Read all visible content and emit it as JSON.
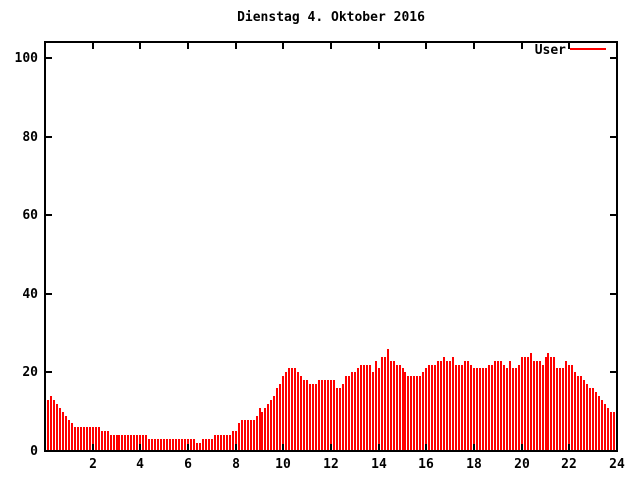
{
  "title": "Dienstag 4. Oktober 2016",
  "legend": {
    "label": "User",
    "color": "#ff0000",
    "position": "top-right"
  },
  "colors": {
    "background": "#ffffff",
    "foreground": "#000000",
    "bar": "#ff0000"
  },
  "chart_data": {
    "type": "bar",
    "title": "Dienstag 4. Oktober 2016",
    "xlabel": "",
    "ylabel": "",
    "xlim": [
      0,
      24
    ],
    "ylim": [
      0,
      104
    ],
    "xticks": [
      2,
      4,
      6,
      8,
      10,
      12,
      14,
      16,
      18,
      20,
      22,
      24
    ],
    "yticks": [
      0,
      20,
      40,
      60,
      80,
      100
    ],
    "grid": false,
    "legend_position": "top-right",
    "x_start_hours": 0.125,
    "x_step_hours": 0.125,
    "series": [
      {
        "name": "User",
        "color": "#ff0000",
        "values": [
          13,
          14,
          13,
          12,
          11,
          10,
          9,
          8,
          7,
          6,
          6,
          6,
          6,
          6,
          6,
          6,
          6,
          6,
          5,
          5,
          5,
          4,
          4,
          4,
          4,
          4,
          4,
          4,
          4,
          4,
          4,
          4,
          4,
          4,
          3,
          3,
          3,
          3,
          3,
          3,
          3,
          3,
          3,
          3,
          3,
          3,
          3,
          3,
          3,
          3,
          2,
          2,
          3,
          3,
          3,
          3,
          4,
          4,
          4,
          4,
          4,
          4,
          5,
          5,
          7,
          8,
          8,
          8,
          8,
          8,
          9,
          11,
          10,
          11,
          12,
          13,
          14,
          16,
          17,
          19,
          20,
          21,
          21,
          21,
          20,
          19,
          18,
          18,
          17,
          17,
          17,
          18,
          18,
          18,
          18,
          18,
          18,
          16,
          16,
          17,
          19,
          19,
          20,
          20,
          21,
          22,
          22,
          22,
          22,
          20,
          23,
          21,
          24,
          24,
          26,
          23,
          23,
          22,
          22,
          21,
          20,
          19,
          19,
          19,
          19,
          19,
          20,
          21,
          22,
          22,
          22,
          23,
          23,
          24,
          23,
          23,
          24,
          22,
          22,
          22,
          23,
          23,
          22,
          21,
          21,
          21,
          21,
          21,
          22,
          22,
          23,
          23,
          23,
          22,
          21,
          23,
          21,
          21,
          22,
          24,
          24,
          24,
          25,
          23,
          23,
          23,
          22,
          24,
          25,
          24,
          24,
          21,
          21,
          21,
          23,
          22,
          22,
          20,
          19,
          19,
          18,
          17,
          16,
          16,
          15,
          14,
          13,
          12,
          11,
          10,
          10,
          10
        ]
      }
    ]
  }
}
